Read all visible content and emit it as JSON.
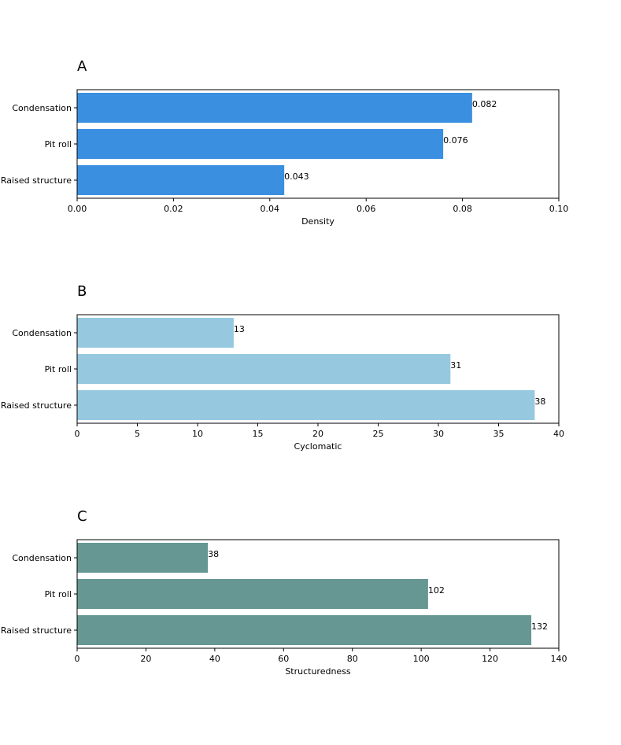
{
  "chart_data": [
    {
      "type": "bar",
      "orientation": "horizontal",
      "panel": "A",
      "title": "",
      "categories": [
        "Condensation",
        "Pit roll",
        "Raised structure"
      ],
      "values": [
        0.082,
        0.076,
        0.043
      ],
      "value_labels": [
        "0.082",
        "0.076",
        "0.043"
      ],
      "xlabel": "Density",
      "ylabel": "",
      "xlim": [
        0,
        0.1
      ],
      "xticks": [
        0,
        0.02,
        0.04,
        0.06,
        0.08,
        0.1
      ],
      "xtick_labels": [
        "0.00",
        "0.02",
        "0.04",
        "0.06",
        "0.08",
        "0.10"
      ],
      "color": "#3a8fe0",
      "grid": false
    },
    {
      "type": "bar",
      "orientation": "horizontal",
      "panel": "B",
      "title": "",
      "categories": [
        "Condensation",
        "Pit roll",
        "Raised structure"
      ],
      "values": [
        13,
        31,
        38
      ],
      "value_labels": [
        "13",
        "31",
        "38"
      ],
      "xlabel": "Cyclomatic",
      "ylabel": "",
      "xlim": [
        0,
        40
      ],
      "xticks": [
        0,
        5,
        10,
        15,
        20,
        25,
        30,
        35,
        40
      ],
      "xtick_labels": [
        "0",
        "5",
        "10",
        "15",
        "20",
        "25",
        "30",
        "35",
        "40"
      ],
      "color": "#96c9e0",
      "grid": false
    },
    {
      "type": "bar",
      "orientation": "horizontal",
      "panel": "C",
      "title": "",
      "categories": [
        "Condensation",
        "Pit roll",
        "Raised structure"
      ],
      "values": [
        38,
        102,
        132
      ],
      "value_labels": [
        "38",
        "102",
        "132"
      ],
      "xlabel": "Structuredness",
      "ylabel": "",
      "xlim": [
        0,
        140
      ],
      "xticks": [
        0,
        20,
        40,
        60,
        80,
        100,
        120,
        140
      ],
      "xtick_labels": [
        "0",
        "20",
        "40",
        "60",
        "80",
        "100",
        "120",
        "140"
      ],
      "color": "#669793",
      "grid": false
    }
  ]
}
